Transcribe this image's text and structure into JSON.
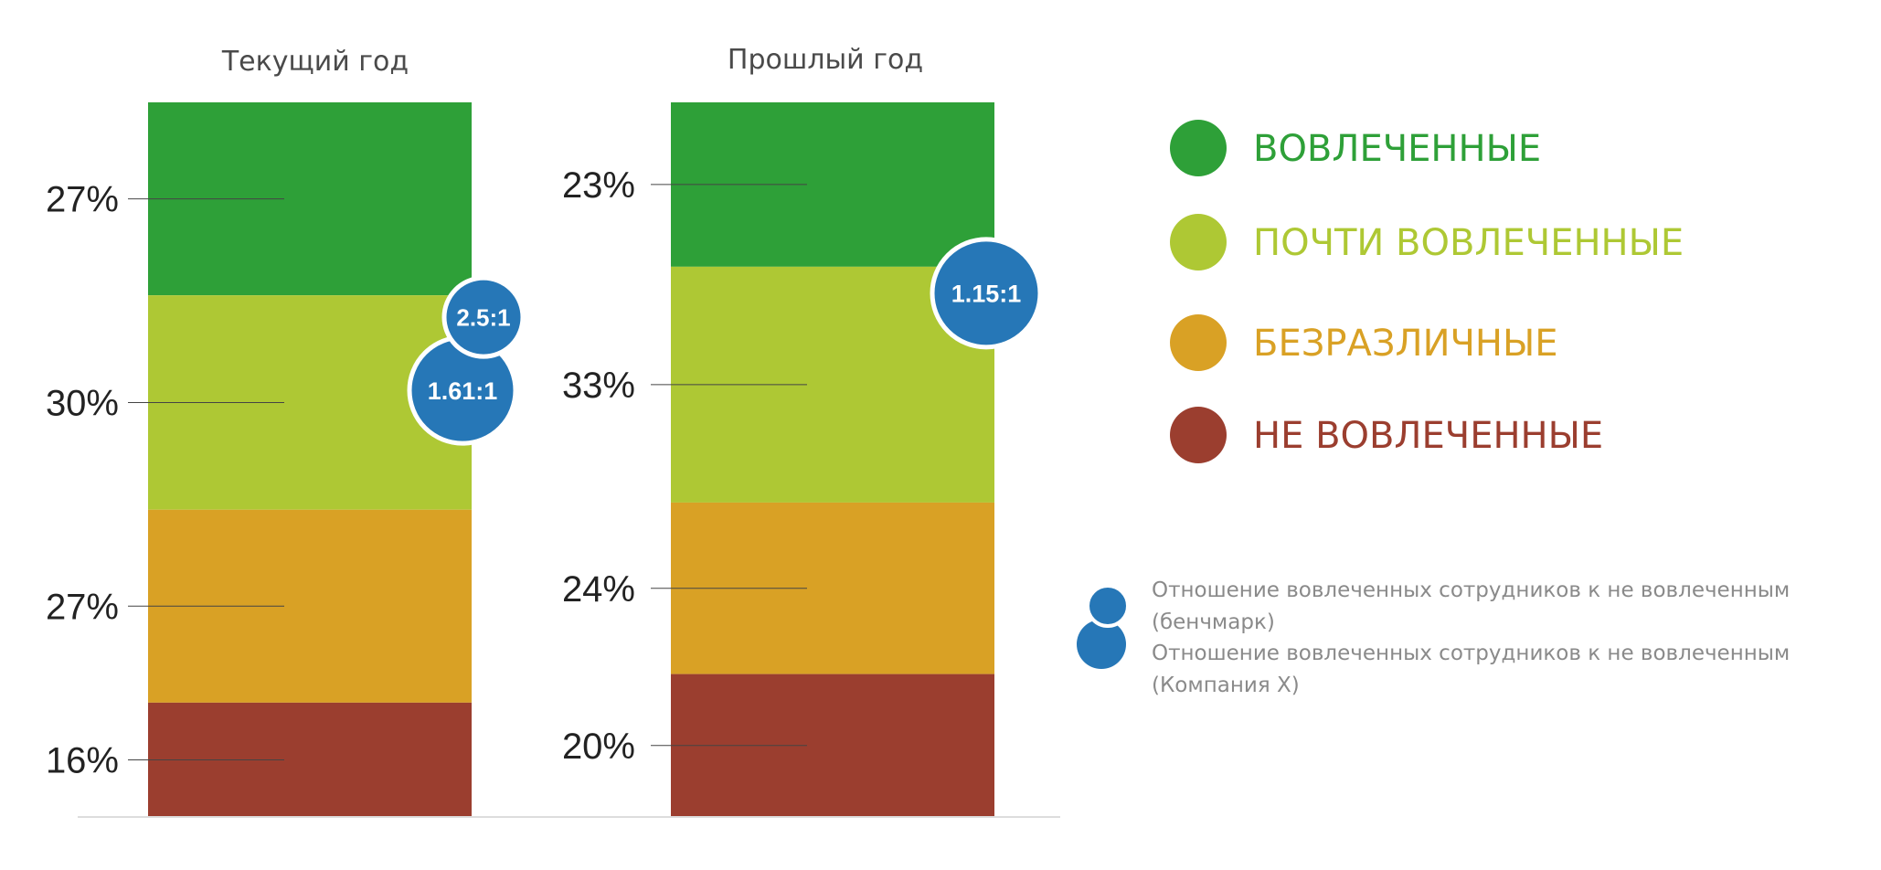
{
  "chart_data": {
    "type": "bar",
    "stacked": true,
    "categories": [
      "Текущий год",
      "Прошлый год"
    ],
    "series": [
      {
        "name": "ВОВЛЕЧЕННЫЕ",
        "values": [
          27,
          23
        ],
        "labels": [
          "27%",
          "23%"
        ],
        "color": "#2ea038"
      },
      {
        "name": "ПОЧТИ ВОВЛЕЧЕННЫЕ",
        "values": [
          30,
          33
        ],
        "labels": [
          "30%",
          "33%"
        ],
        "color": "#aec834"
      },
      {
        "name": "БЕЗРАЗЛИЧНЫЕ",
        "values": [
          27,
          24
        ],
        "labels": [
          "27%",
          "24%"
        ],
        "color": "#d9a125"
      },
      {
        "name": "НЕ ВОВЛЕЧЕННЫЕ",
        "values": [
          16,
          20
        ],
        "labels": [
          "16%",
          "20%"
        ],
        "color": "#9b3e2f"
      }
    ],
    "ratios": [
      {
        "category": "Текущий год",
        "kind": "benchmark",
        "label": "2.5:1"
      },
      {
        "category": "Текущий год",
        "kind": "company",
        "label": "1.61:1"
      },
      {
        "category": "Прошлый год",
        "kind": "company",
        "label": "1.15:1"
      }
    ],
    "legend_position": "right",
    "ratio_legend": {
      "benchmark_lines": [
        "Отношение вовлеченных сотрудников к не вовлеченным",
        "(бенчмарк)"
      ],
      "company_lines": [
        "Отношение вовлеченных сотрудников к не вовлеченным",
        "(Компания X)"
      ]
    },
    "marker_color": "#2677b7",
    "grid": false
  }
}
